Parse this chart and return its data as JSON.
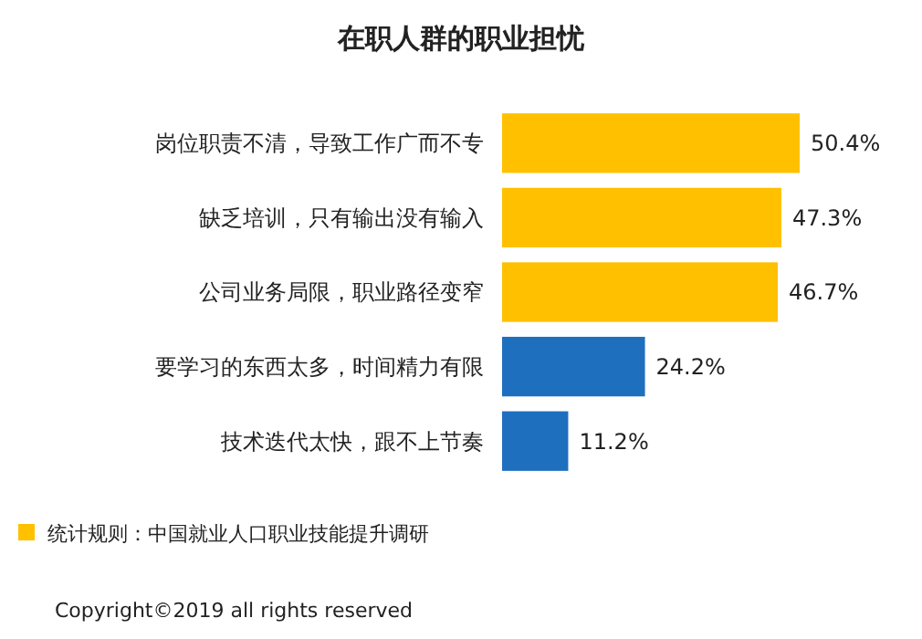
{
  "chart_data": {
    "type": "bar",
    "orientation": "horizontal",
    "title": "在职人群的职业担忧",
    "categories": [
      "岗位职责不清，导致工作广而不专",
      "缺乏培训，只有输出没有输入",
      "公司业务局限，职业路径变窄",
      "要学习的东西太多，时间精力有限",
      "技术迭代太快，跟不上节奏"
    ],
    "values": [
      50.4,
      47.3,
      46.7,
      24.2,
      11.2
    ],
    "colors": [
      "#ffc000",
      "#ffc000",
      "#ffc000",
      "#1f6fbf",
      "#1f6fbf"
    ],
    "value_labels": [
      "50.4%",
      "47.3%",
      "46.7%",
      "24.2%",
      "11.2%"
    ],
    "annotations": [
      "统计规则：中国就业人口职业技能提升调研",
      "Copyright©2019 all rights reserved"
    ]
  }
}
